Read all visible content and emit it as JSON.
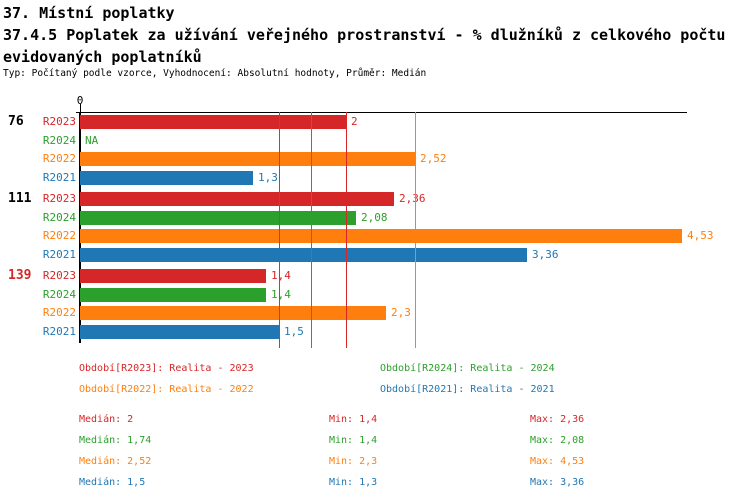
{
  "header": {
    "title": "37. Místní poplatky",
    "subtitle": "37.4.5 Poplatek za užívání veřejného prostranství - % dlužníků z celkového počtu evidovaných poplatníků",
    "meta": "Typ: Počítaný podle vzorce, Vyhodnocení: Absolutní hodnoty, Průměr: Medián"
  },
  "colors": {
    "R2023": "#d62728",
    "R2024": "#2ca02c",
    "R2022": "#ff7f0e",
    "R2021": "#1f77b4",
    "axis": "#000000",
    "group_label_normal": "#000000",
    "group_label_highlight": "#d62728"
  },
  "chart_data": {
    "type": "bar",
    "orientation": "horizontal",
    "title": "37.4.5 Poplatek za užívání veřejného prostranství - % dlužníků z celkového počtu evidovaných poplatníků",
    "xlabel": "",
    "ylabel": "",
    "xlim": [
      0,
      4.57
    ],
    "x_axis_zero_label": "0",
    "grid": false,
    "series_order": [
      "R2023",
      "R2024",
      "R2022",
      "R2021"
    ],
    "groups": [
      {
        "label": "76",
        "highlight": false,
        "bars": [
          {
            "series": "R2023",
            "value": 2,
            "label": "2"
          },
          {
            "series": "R2024",
            "value": null,
            "label": "NA"
          },
          {
            "series": "R2022",
            "value": 2.52,
            "label": "2,52"
          },
          {
            "series": "R2021",
            "value": 1.3,
            "label": "1,3"
          }
        ]
      },
      {
        "label": "111",
        "highlight": false,
        "bars": [
          {
            "series": "R2023",
            "value": 2.36,
            "label": "2,36"
          },
          {
            "series": "R2024",
            "value": 2.08,
            "label": "2,08"
          },
          {
            "series": "R2022",
            "value": 4.53,
            "label": "4,53"
          },
          {
            "series": "R2021",
            "value": 3.36,
            "label": "3,36"
          }
        ]
      },
      {
        "label": "139",
        "highlight": true,
        "bars": [
          {
            "series": "R2023",
            "value": 1.4,
            "label": "1,4"
          },
          {
            "series": "R2024",
            "value": 1.4,
            "label": "1,4"
          },
          {
            "series": "R2022",
            "value": 2.3,
            "label": "2,3"
          },
          {
            "series": "R2021",
            "value": 1.5,
            "label": "1,5"
          }
        ]
      }
    ],
    "median_lines": [
      {
        "series": "R2021",
        "value": 1.5
      },
      {
        "series": "R2024",
        "value": 1.74
      },
      {
        "series": "R2023",
        "value": 2.0
      },
      {
        "series": "R2022",
        "value": 2.52
      }
    ]
  },
  "legend": {
    "items": [
      {
        "series": "R2023",
        "label": "Období[R2023]: Realita - 2023"
      },
      {
        "series": "R2024",
        "label": "Období[R2024]: Realita - 2024"
      },
      {
        "series": "R2022",
        "label": "Období[R2022]: Realita - 2022"
      },
      {
        "series": "R2021",
        "label": "Období[R2021]: Realita - 2021"
      }
    ]
  },
  "stats": {
    "rows": [
      {
        "series": "R2023",
        "median": "Medián: 2",
        "min": "Min: 1,4",
        "max": "Max: 2,36"
      },
      {
        "series": "R2024",
        "median": "Medián: 1,74",
        "min": "Min: 1,4",
        "max": "Max: 2,08"
      },
      {
        "series": "R2022",
        "median": "Medián: 2,52",
        "min": "Min: 2,3",
        "max": "Max: 4,53"
      },
      {
        "series": "R2021",
        "median": "Medián: 1,5",
        "min": "Min: 1,3",
        "max": "Max: 3,36"
      }
    ]
  }
}
